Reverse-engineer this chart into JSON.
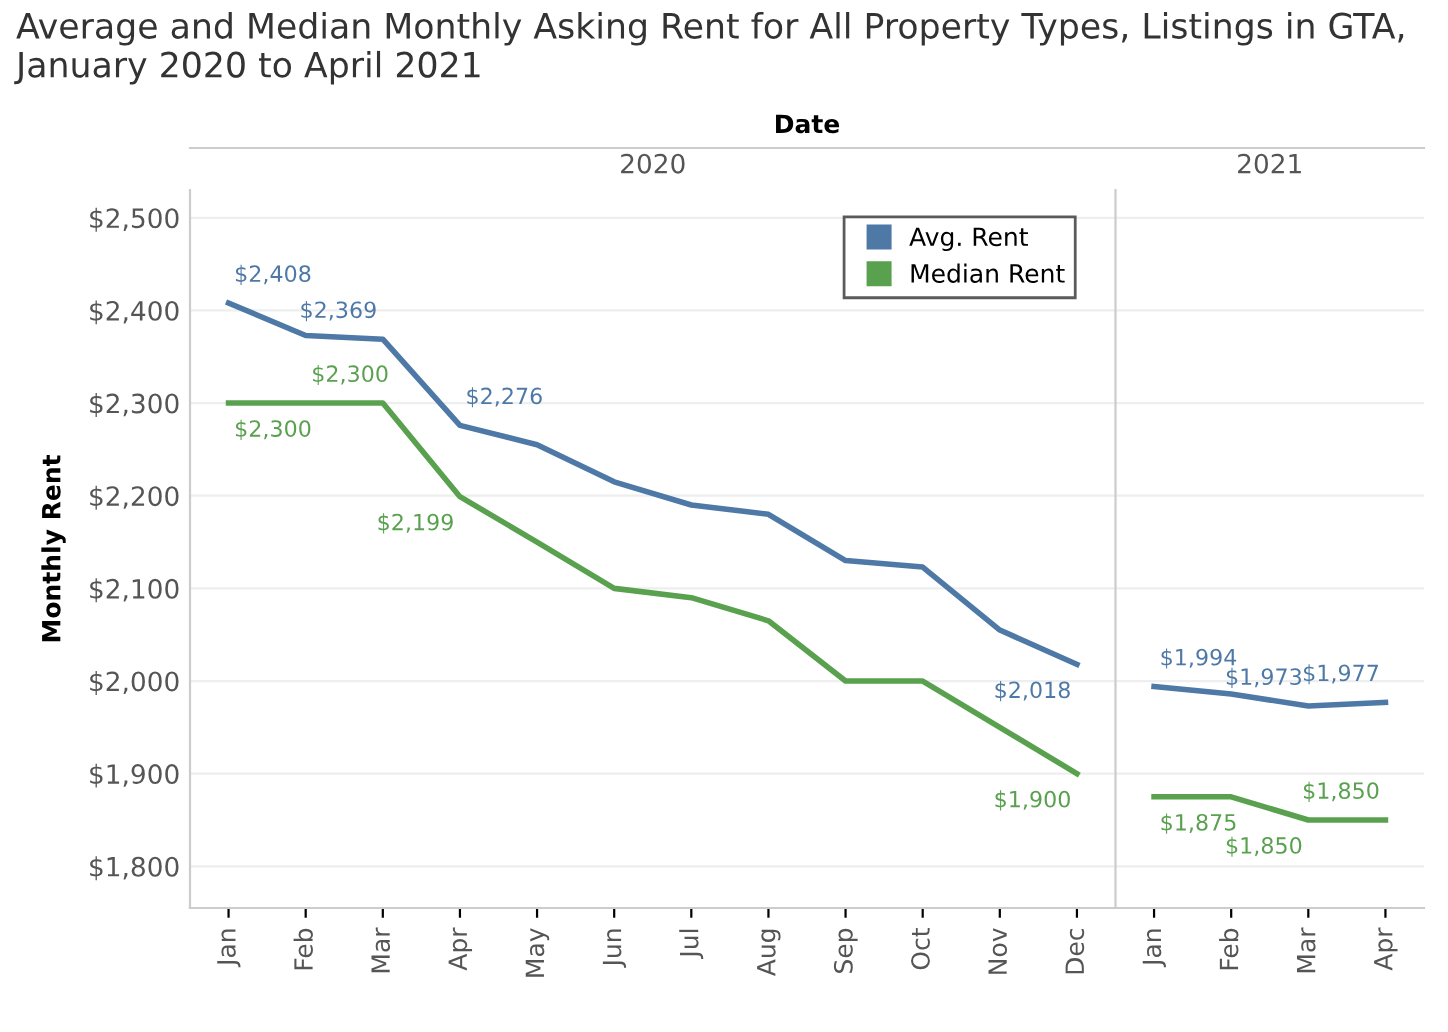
{
  "chart_data": [
    {
      "type": "line",
      "title": "Average and Median Monthly Asking Rent for All Property Types, Listings in GTA, January 2020 to April 2021",
      "subtitle": "2020",
      "annotations": [
        "Date"
      ],
      "ylabel": "Monthly Rent",
      "categories": [
        "Jan",
        "Feb",
        "Mar",
        "Apr",
        "May",
        "Jun",
        "Jul",
        "Aug",
        "Sep",
        "Oct",
        "Nov",
        "Dec"
      ],
      "series": [
        {
          "name": "Avg. Rent",
          "color": "#4e79a7",
          "values": [
            2408,
            2373,
            2369,
            2276,
            2255,
            2215,
            2190,
            2180,
            2130,
            2123,
            2055,
            2018
          ],
          "value_labels": [
            "$2,408",
            null,
            "$2,369",
            "$2,276",
            null,
            null,
            null,
            null,
            null,
            null,
            null,
            "$2,018"
          ]
        },
        {
          "name": "Median Rent",
          "color": "#59a14f",
          "values": [
            2300,
            2300,
            2300,
            2199,
            2150,
            2100,
            2090,
            2065,
            2000,
            2000,
            1950,
            1900
          ],
          "value_labels": [
            "$2,300",
            "$2,300",
            null,
            "$2,199",
            null,
            null,
            null,
            null,
            null,
            null,
            null,
            "$1,900"
          ]
        }
      ],
      "ylim": [
        1755,
        2530
      ],
      "yticks": [
        {
          "value": 1800,
          "label": "$1,800"
        },
        {
          "value": 1900,
          "label": "$1,900"
        },
        {
          "value": 2000,
          "label": "$2,000"
        },
        {
          "value": 2100,
          "label": "$2,100"
        },
        {
          "value": 2200,
          "label": "$2,200"
        },
        {
          "value": 2300,
          "label": "$2,300"
        },
        {
          "value": 2400,
          "label": "$2,400"
        },
        {
          "value": 2500,
          "label": "$2,500"
        }
      ],
      "grid": "y",
      "legend": "top right"
    },
    {
      "type": "line",
      "subtitle": "2021",
      "categories": [
        "Jan",
        "Feb",
        "Mar",
        "Apr"
      ],
      "series": [
        {
          "color": "#4e79a7",
          "values": [
            1994,
            1986,
            1973,
            1977
          ],
          "value_labels": [
            "$1,994",
            null,
            "$1,973",
            "$1,977"
          ]
        },
        {
          "color": "#59a14f",
          "values": [
            1875,
            1875,
            1850,
            1850
          ],
          "value_labels": [
            "$1,875",
            null,
            "$1,850",
            "$1,850"
          ]
        }
      ],
      "ylim": [
        1755,
        2530
      ],
      "yticks": [
        {
          "value": 1800,
          "label": null
        },
        {
          "value": 1900,
          "label": null
        },
        {
          "value": 2000,
          "label": null
        },
        {
          "value": 2100,
          "label": null
        },
        {
          "value": 2200,
          "label": null
        },
        {
          "value": 2300,
          "label": null
        },
        {
          "value": 2400,
          "label": null
        },
        {
          "value": 2500,
          "label": null
        }
      ],
      "grid": "y",
      "tick_labels": "x"
    }
  ]
}
